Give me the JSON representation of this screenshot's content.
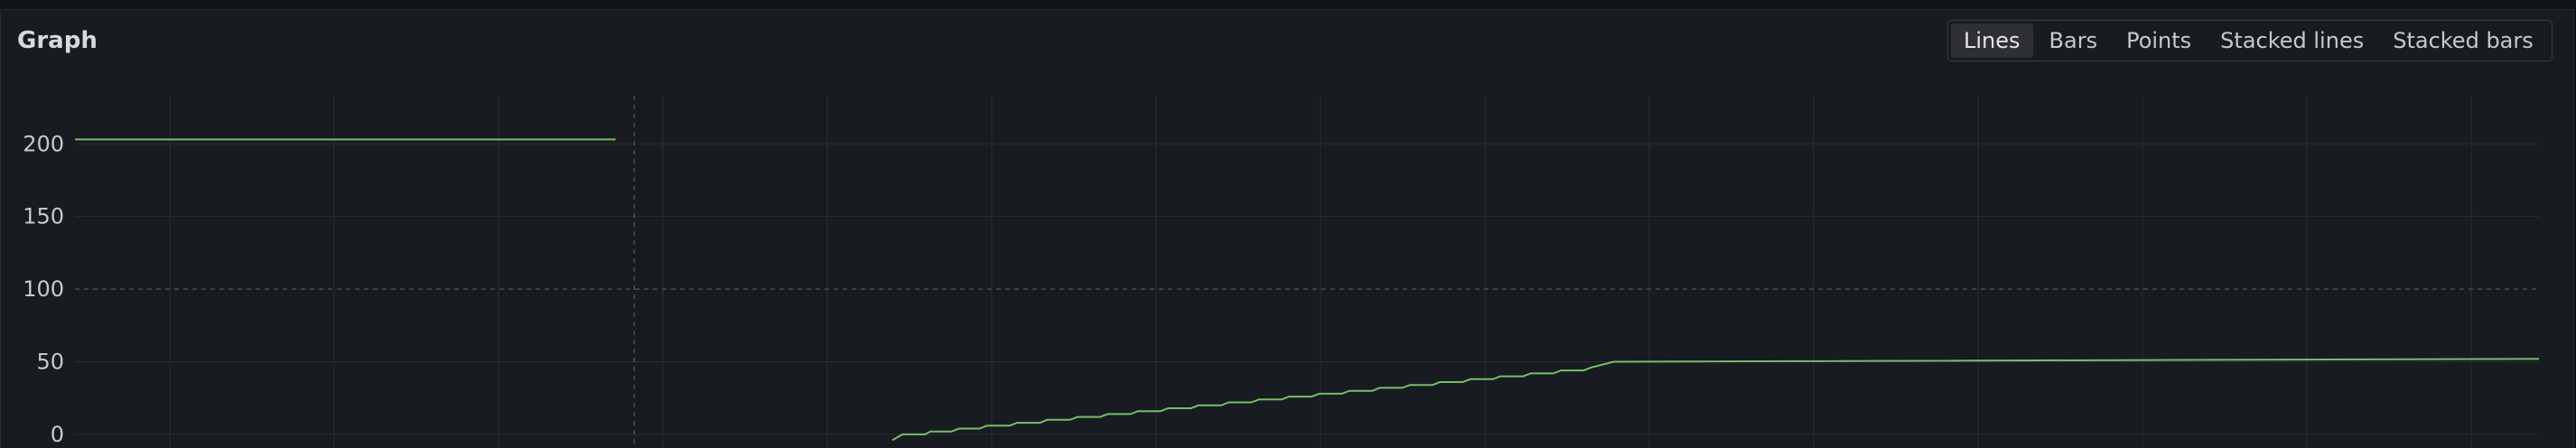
{
  "panel": {
    "title": "Graph"
  },
  "toggle": {
    "options": [
      "Lines",
      "Bars",
      "Points",
      "Stacked lines",
      "Stacked bars"
    ],
    "selected": "Lines"
  },
  "colors": {
    "series": "#73bf69",
    "grid": "#2a2d32",
    "threshold": "#4a4d52",
    "axis_text": "#c7c9cf"
  },
  "chart_data": {
    "type": "line",
    "title": "",
    "ylim": [
      -10,
      230
    ],
    "yticks": [
      0,
      50,
      100,
      150,
      200
    ],
    "ytick_labels": [
      "0",
      "50",
      "100",
      "150",
      "200"
    ],
    "threshold": 100,
    "time_marker": 0.227,
    "grid": true,
    "series": [
      {
        "x": [
          0.0,
          0.2194,
          null,
          0.3317,
          0.3359,
          0.3451,
          0.3471,
          0.3558,
          0.3588,
          0.3671,
          0.3701,
          0.3793,
          0.3824,
          0.3916,
          0.3946,
          0.4038,
          0.4069,
          0.4161,
          0.4191,
          0.4284,
          0.4314,
          0.4406,
          0.4437,
          0.4529,
          0.4559,
          0.4652,
          0.4682,
          0.4774,
          0.4805,
          0.4897,
          0.4927,
          0.5019,
          0.505,
          0.5142,
          0.5172,
          0.5265,
          0.5295,
          0.5387,
          0.5418,
          0.551,
          0.554,
          0.5632,
          0.5663,
          0.5755,
          0.5785,
          0.5878,
          0.5908,
          0.6,
          0.6031,
          0.6123,
          0.6153,
          0.6245,
          1.0
        ],
        "y": [
          203,
          203,
          null,
          -4,
          0,
          0,
          2,
          2,
          4,
          4,
          6,
          6,
          8,
          8,
          10,
          10,
          12,
          12,
          14,
          14,
          16,
          16,
          18,
          18,
          20,
          20,
          22,
          22,
          24,
          24,
          26,
          26,
          28,
          28,
          30,
          30,
          32,
          32,
          34,
          34,
          36,
          36,
          38,
          38,
          40,
          40,
          42,
          42,
          44,
          44,
          46,
          50,
          52
        ]
      }
    ]
  }
}
